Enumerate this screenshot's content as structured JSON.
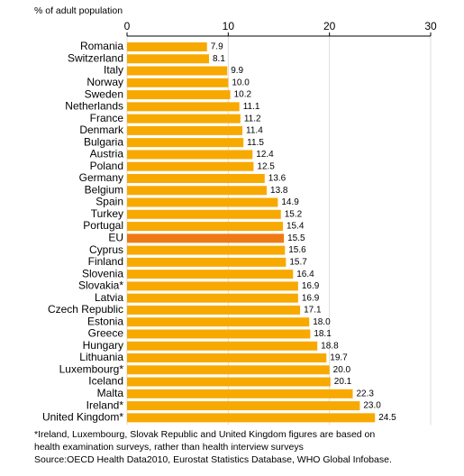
{
  "chart_data": {
    "type": "hbar",
    "title": "% of adult population",
    "categories": [
      "Romania",
      "Switzerland",
      "Italy",
      "Norway",
      "Sweden",
      "Netherlands",
      "France",
      "Denmark",
      "Bulgaria",
      "Austria",
      "Poland",
      "Germany",
      "Belgium",
      "Spain",
      "Turkey",
      "Portugal",
      "EU",
      "Cyprus",
      "Finland",
      "Slovenia",
      "Slovakia*",
      "Latvia",
      "Czech Republic",
      "Estonia",
      "Greece",
      "Hungary",
      "Lithuania",
      "Luxembourg*",
      "Iceland",
      "Malta",
      "Ireland*",
      "United Kingdom*"
    ],
    "values": [
      7.9,
      8.1,
      9.9,
      10.0,
      10.2,
      11.1,
      11.2,
      11.4,
      11.5,
      12.4,
      12.5,
      13.6,
      13.8,
      14.9,
      15.2,
      15.4,
      15.5,
      15.6,
      15.7,
      16.4,
      16.9,
      16.9,
      17.1,
      18.0,
      18.1,
      18.8,
      19.7,
      20.0,
      20.1,
      22.3,
      23.0,
      24.5
    ],
    "value_labels": [
      "7.9",
      "8.1",
      "9.9",
      "10.0",
      "10.2",
      "11.1",
      "11.2",
      "11.4",
      "11.5",
      "12.4",
      "12.5",
      "13.6",
      "13.8",
      "14.9",
      "15.2",
      "15.4",
      "15.5",
      "15.6",
      "15.7",
      "16.4",
      "16.9",
      "16.9",
      "17.1",
      "18.0",
      "18.1",
      "18.8",
      "19.7",
      "20.0",
      "20.1",
      "22.3",
      "23.0",
      "24.5"
    ],
    "colors": [
      "#f7a900",
      "#f7a900",
      "#f7a900",
      "#f7a900",
      "#f7a900",
      "#f7a900",
      "#f7a900",
      "#f7a900",
      "#f7a900",
      "#f7a900",
      "#f7a900",
      "#f7a900",
      "#f7a900",
      "#f7a900",
      "#f7a900",
      "#f7a900",
      "#ef7a14",
      "#f7a900",
      "#f7a900",
      "#f7a900",
      "#f7a900",
      "#f7a900",
      "#f7a900",
      "#f7a900",
      "#f7a900",
      "#f7a900",
      "#f7a900",
      "#f7a900",
      "#f7a900",
      "#f7a900",
      "#f7a900",
      "#f7a900"
    ],
    "xlim": [
      0,
      30
    ],
    "xticks": [
      0,
      10,
      20,
      30
    ],
    "grid": true,
    "notes": [
      "*Ireland, Luxembourg, Slovak Republic and United Kingdom figures are based on",
      "health examination surveys, rather than health interview surveys",
      "Source:OECD Health Data2010, Eurostat Statistics Database, WHO Global Infobase."
    ]
  }
}
